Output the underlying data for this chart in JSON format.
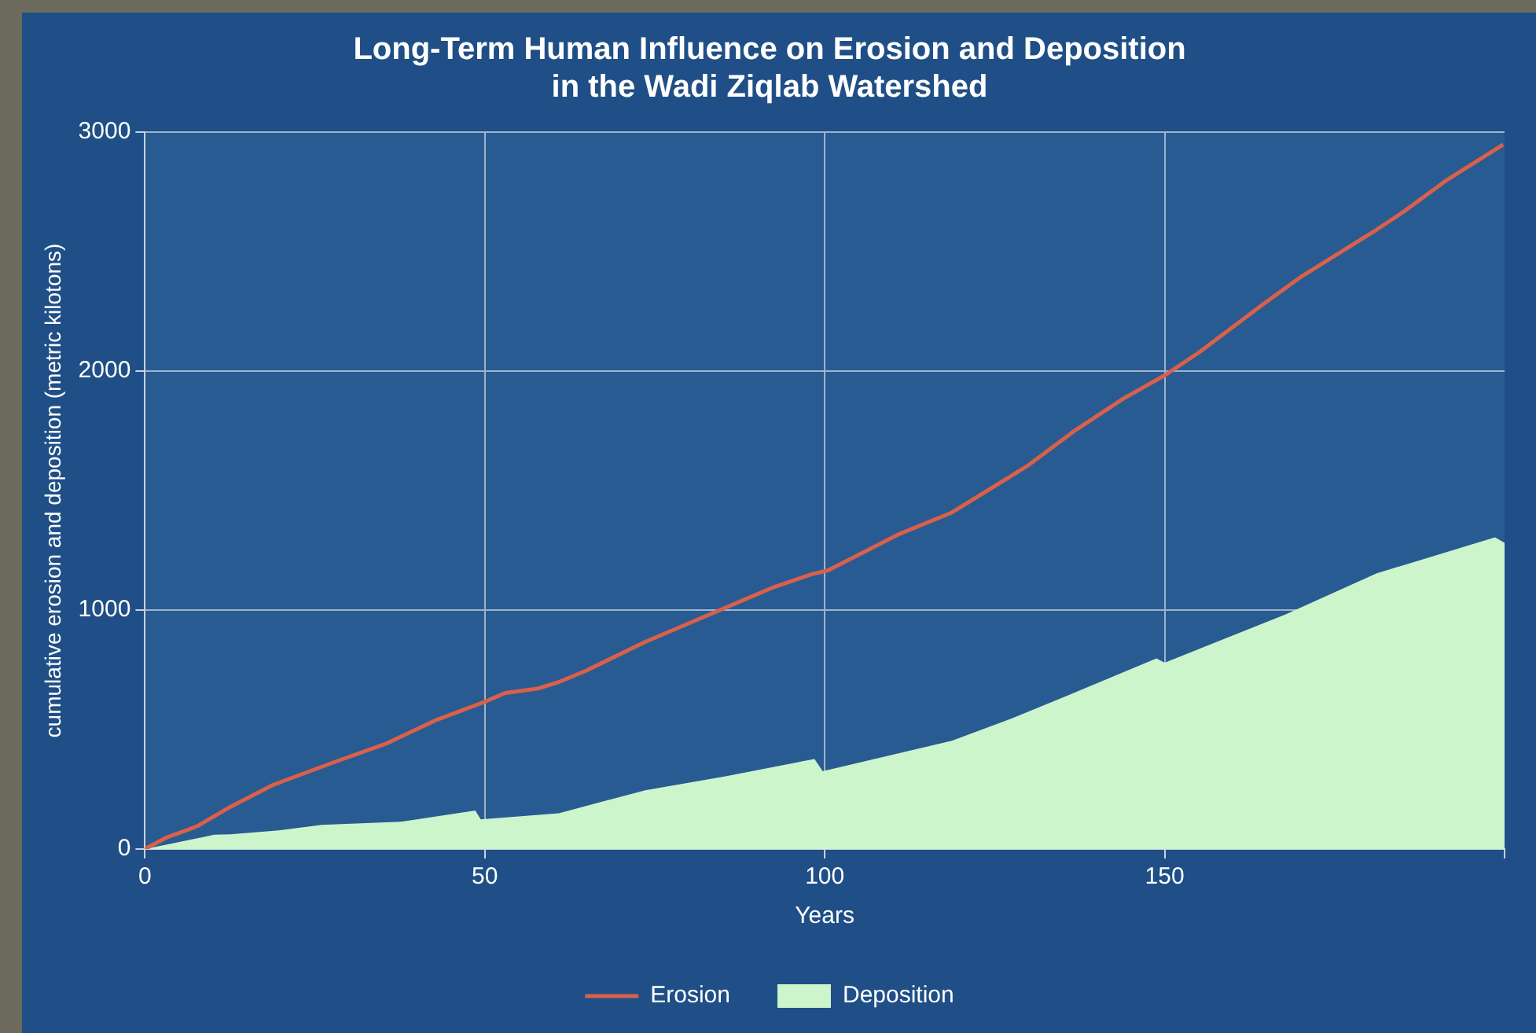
{
  "chart_data": {
    "type": "area",
    "title": "Long-Term Human Influence on Erosion and Deposition\nin the Wadi Ziqlab Watershed",
    "xlabel": "Years",
    "ylabel": "cumulative erosion and deposition (metric kilotons)",
    "xlim": [
      0,
      200
    ],
    "xticks": [
      0,
      50,
      100,
      150,
      {
        "value": 200,
        "label": null
      }
    ],
    "ylim": [
      0,
      3000
    ],
    "yticks": [
      0,
      1000,
      2000,
      3000
    ],
    "grid": true,
    "legend": "bottom",
    "marker": "none",
    "series": [
      {
        "name": "Deposition",
        "color": "#ccf5cc",
        "x": [
          0,
          5.5,
          10.2,
          12.6,
          19.7,
          26,
          37.9,
          48.6,
          49.4,
          60.9,
          73.6,
          85.4,
          98.5,
          99.7,
          118.7,
          127.4,
          135.3,
          148.8,
          150,
          167.8,
          181.2,
          198.6,
          200
        ],
        "values": [
          0,
          32,
          60,
          62,
          78,
          101,
          115,
          161,
          124,
          150,
          246,
          304,
          377,
          326,
          453,
          545,
          637,
          798,
          780,
          982,
          1154,
          1304,
          1281
        ]
      },
      {
        "name": "Erosion",
        "type": "line",
        "color": "#d9604a",
        "line_style": "solid",
        "x": [
          0,
          3.3,
          6.3,
          7.8,
          12.6,
          18.9,
          27.6,
          35.5,
          42.7,
          49.8,
          53,
          57.7,
          60.9,
          64.8,
          73.6,
          85.4,
          92.6,
          98.1,
          100.5,
          110.8,
          118.7,
          129.8,
          136.9,
          144,
          150,
          155.1,
          164.6,
          170.2,
          181.2,
          185.2,
          191.5,
          199.8
        ],
        "values": [
          0,
          50,
          80,
          97,
          177,
          269,
          361,
          441,
          538,
          614,
          653,
          671,
          699,
          745,
          867,
          1010,
          1097,
          1150,
          1166,
          1316,
          1408,
          1603,
          1753,
          1886,
          1982,
          2079,
          2282,
          2397,
          2592,
          2668,
          2799,
          2948
        ]
      }
    ]
  }
}
